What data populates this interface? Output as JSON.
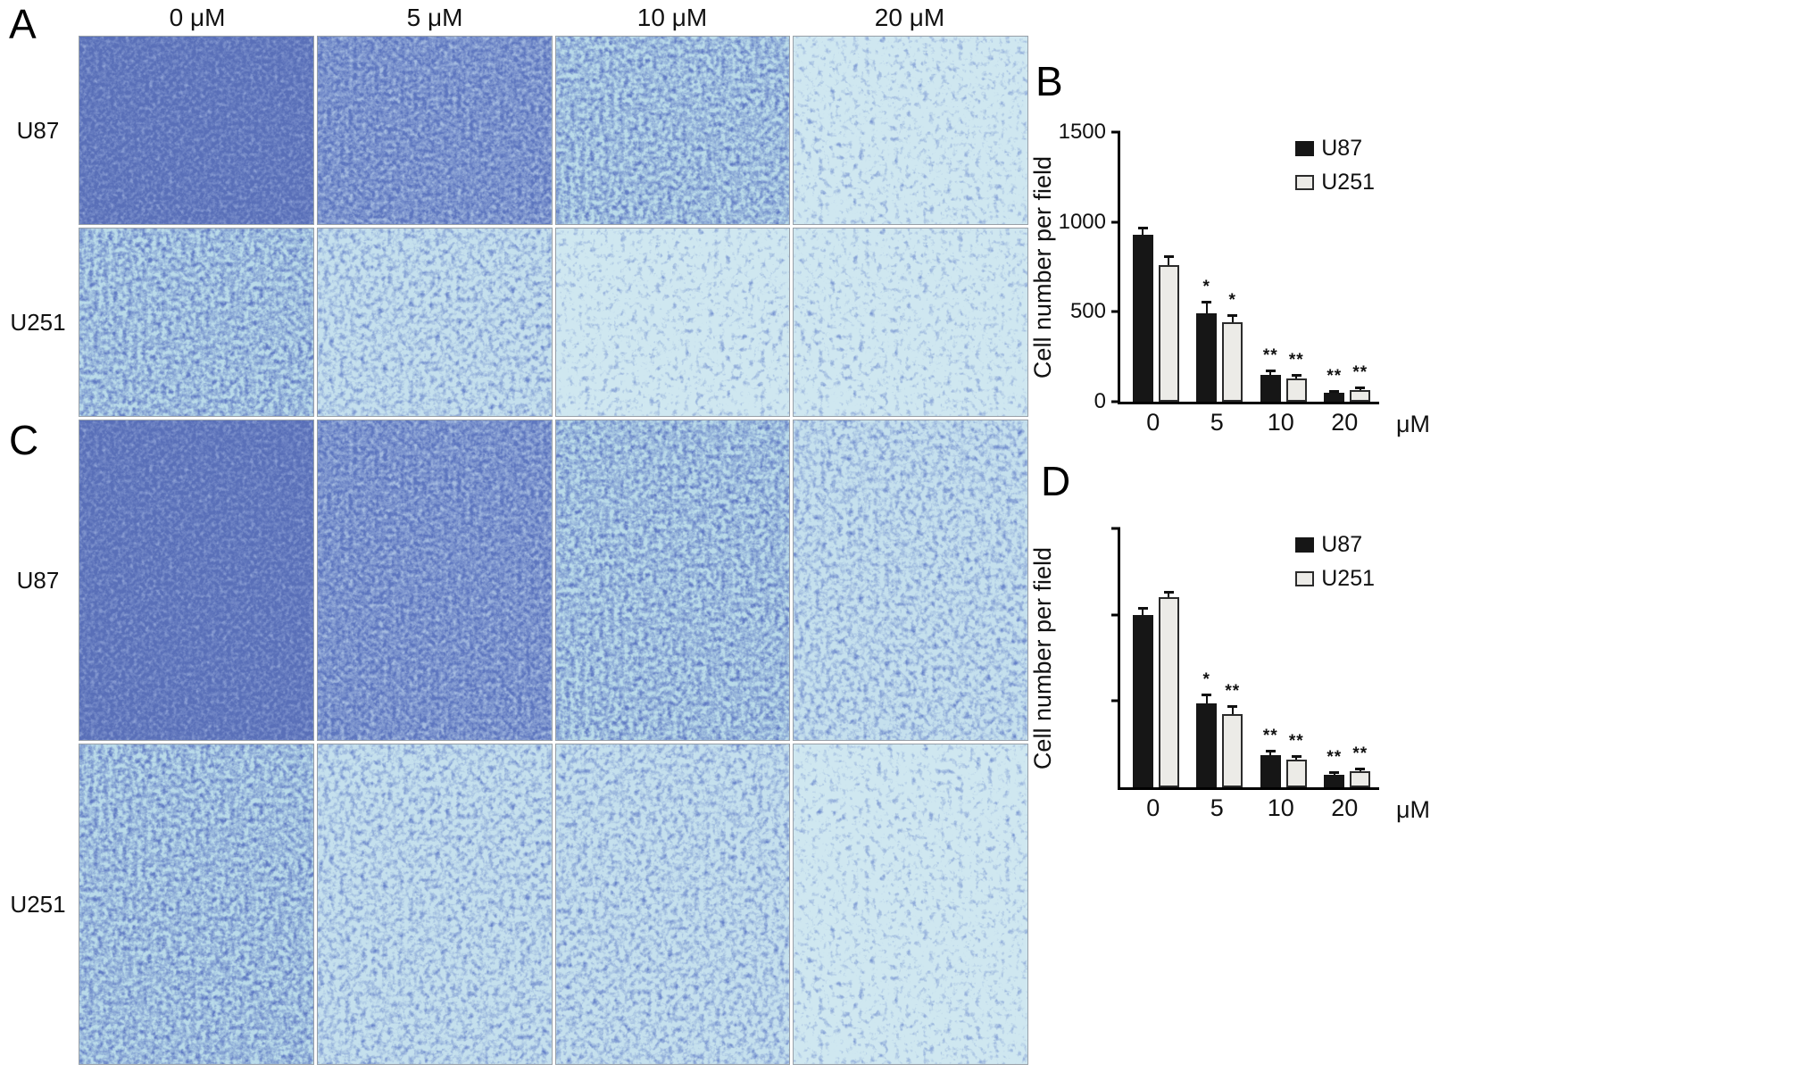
{
  "figure": {
    "panel_labels": [
      "A",
      "B",
      "C",
      "D"
    ],
    "column_headers": [
      "0 μM",
      "5 μM",
      "10 μM",
      "20 μM"
    ],
    "grid_a_rows": [
      "U87",
      "U251"
    ],
    "grid_c_rows": [
      "U87",
      "U251"
    ],
    "micrographs": {
      "stain_color": "#2a3a93",
      "background_color": "#cfe7f0"
    }
  },
  "chart_data": [
    {
      "panel": "B",
      "type": "bar",
      "categories": [
        "0",
        "5",
        "10",
        "20"
      ],
      "x_unit": "μM",
      "ylabel": "Cell number per field",
      "ylim": [
        0,
        1500
      ],
      "yticks": [
        0,
        500,
        1000,
        1500
      ],
      "grid": false,
      "legend_position": "top-right",
      "series": [
        {
          "name": "U87",
          "color": "#161616",
          "values": [
            930,
            490,
            150,
            50
          ],
          "errors": [
            45,
            70,
            30,
            15
          ],
          "significance": [
            "",
            "*",
            "**",
            "**"
          ]
        },
        {
          "name": "U251",
          "color": "#ecebe7",
          "values": [
            760,
            440,
            130,
            65
          ],
          "errors": [
            55,
            45,
            25,
            18
          ],
          "significance": [
            "",
            "*",
            "**",
            "**"
          ]
        }
      ]
    },
    {
      "panel": "D",
      "type": "bar",
      "categories": [
        "0",
        "5",
        "10",
        "20"
      ],
      "x_unit": "μM",
      "ylabel": "Cell number per field",
      "ylim": [
        0,
        1200
      ],
      "yticks": [],
      "unlabeled_ytick_count": 3,
      "grid": false,
      "legend_position": "top-right",
      "series": [
        {
          "name": "U87",
          "color": "#161616",
          "values": [
            800,
            390,
            150,
            60
          ],
          "errors": [
            35,
            45,
            25,
            15
          ],
          "significance": [
            "",
            "*",
            "**",
            "**"
          ]
        },
        {
          "name": "U251",
          "color": "#ecebe7",
          "values": [
            880,
            340,
            130,
            75
          ],
          "errors": [
            30,
            40,
            20,
            15
          ],
          "significance": [
            "",
            "**",
            "**",
            "**"
          ]
        }
      ]
    }
  ]
}
